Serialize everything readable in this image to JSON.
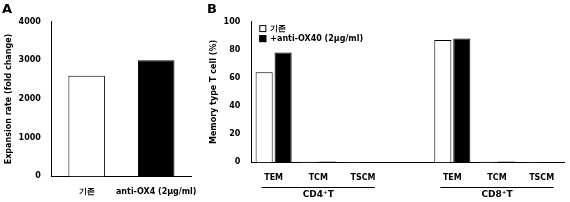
{
  "chart_data": [
    {
      "type": "bar",
      "title": "A",
      "categories": [
        "기존",
        "anti-OX4 (2μg/ml)"
      ],
      "values": [
        2600,
        3000
      ],
      "colors": [
        "#ffffff",
        "#000000"
      ],
      "y_label": "Expansion rate (fold change)",
      "ylim": [
        0,
        4000
      ],
      "yticks": [
        0,
        1000,
        2000,
        3000,
        4000
      ],
      "grid": false
    },
    {
      "type": "bar",
      "title": "B",
      "categories": [
        "TEM",
        "TCM",
        "TSCM",
        null,
        "TEM",
        "TCM",
        "TSCM"
      ],
      "group_labels": [
        "CD4⁺T",
        "CD8⁺T"
      ],
      "series": [
        {
          "name": "기존",
          "color": "#ffffff",
          "values": [
            64,
            0.5,
            0.2,
            null,
            87,
            0.5,
            0.2
          ]
        },
        {
          "name": "+anti-OX40 (2μg/ml)",
          "color": "#000000",
          "values": [
            78,
            0.6,
            0.2,
            null,
            88,
            0.6,
            0.2
          ]
        }
      ],
      "y_label": "Memory type T cell (%)",
      "ylim": [
        0,
        100
      ],
      "yticks": [
        0,
        20,
        40,
        60,
        80,
        100
      ],
      "grid": false,
      "legend": "upper left"
    }
  ]
}
